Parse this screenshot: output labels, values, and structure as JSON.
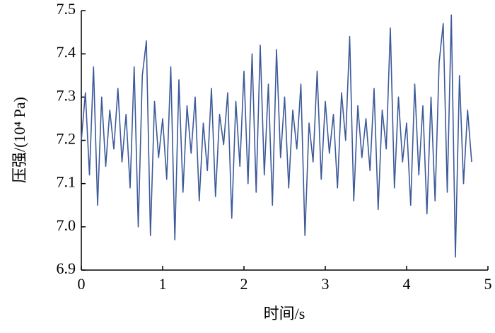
{
  "chart_data": {
    "type": "line",
    "xlabel": "时间/s",
    "ylabel": "压强/(10⁴ Pa)",
    "x": [
      0,
      0.05,
      0.1,
      0.15,
      0.2,
      0.25,
      0.3,
      0.35,
      0.4,
      0.45,
      0.5,
      0.55,
      0.6,
      0.65,
      0.7,
      0.75,
      0.8,
      0.85,
      0.9,
      0.95,
      1,
      1.05,
      1.1,
      1.15,
      1.2,
      1.25,
      1.3,
      1.35,
      1.4,
      1.45,
      1.5,
      1.55,
      1.6,
      1.65,
      1.7,
      1.75,
      1.8,
      1.85,
      1.9,
      1.95,
      2,
      2.05,
      2.1,
      2.15,
      2.2,
      2.25,
      2.3,
      2.35,
      2.4,
      2.45,
      2.5,
      2.55,
      2.6,
      2.65,
      2.7,
      2.75,
      2.8,
      2.85,
      2.9,
      2.95,
      3,
      3.05,
      3.1,
      3.15,
      3.2,
      3.25,
      3.3,
      3.35,
      3.4,
      3.45,
      3.5,
      3.55,
      3.6,
      3.65,
      3.7,
      3.75,
      3.8,
      3.85,
      3.9,
      3.95,
      4,
      4.05,
      4.1,
      4.15,
      4.2,
      4.25,
      4.3,
      4.35,
      4.4,
      4.45,
      4.5,
      4.55,
      4.6,
      4.65,
      4.7,
      4.75,
      4.8
    ],
    "series": [
      {
        "color": "#3d5a99",
        "values": [
          7.2,
          7.31,
          7.12,
          7.37,
          7.05,
          7.3,
          7.14,
          7.27,
          7.18,
          7.32,
          7.15,
          7.26,
          7.09,
          7.37,
          7.0,
          7.35,
          7.43,
          6.98,
          7.29,
          7.16,
          7.25,
          7.11,
          7.37,
          6.97,
          7.34,
          7.08,
          7.28,
          7.17,
          7.3,
          7.06,
          7.24,
          7.13,
          7.32,
          7.07,
          7.26,
          7.19,
          7.31,
          7.02,
          7.29,
          7.14,
          7.36,
          7.1,
          7.4,
          7.08,
          7.42,
          7.12,
          7.33,
          7.05,
          7.41,
          7.16,
          7.3,
          7.09,
          7.27,
          7.18,
          7.33,
          6.98,
          7.24,
          7.15,
          7.36,
          7.11,
          7.29,
          7.17,
          7.26,
          7.09,
          7.31,
          7.2,
          7.44,
          7.06,
          7.28,
          7.16,
          7.25,
          7.13,
          7.32,
          7.04,
          7.27,
          7.18,
          7.46,
          7.09,
          7.3,
          7.15,
          7.24,
          7.05,
          7.33,
          7.12,
          7.28,
          7.03,
          7.3,
          7.06,
          7.38,
          7.47,
          7.08,
          7.49,
          6.93,
          7.35,
          7.1,
          7.27,
          7.15
        ]
      }
    ],
    "xlim": [
      0,
      5
    ],
    "xticks": [
      0,
      1,
      2,
      3,
      4,
      5
    ],
    "ylim": [
      6.9,
      7.5
    ],
    "yticks": [
      6.9,
      {
        "value": 7,
        "label": "7.0"
      },
      7.1,
      7.2,
      7.3,
      7.4,
      7.5
    ]
  }
}
